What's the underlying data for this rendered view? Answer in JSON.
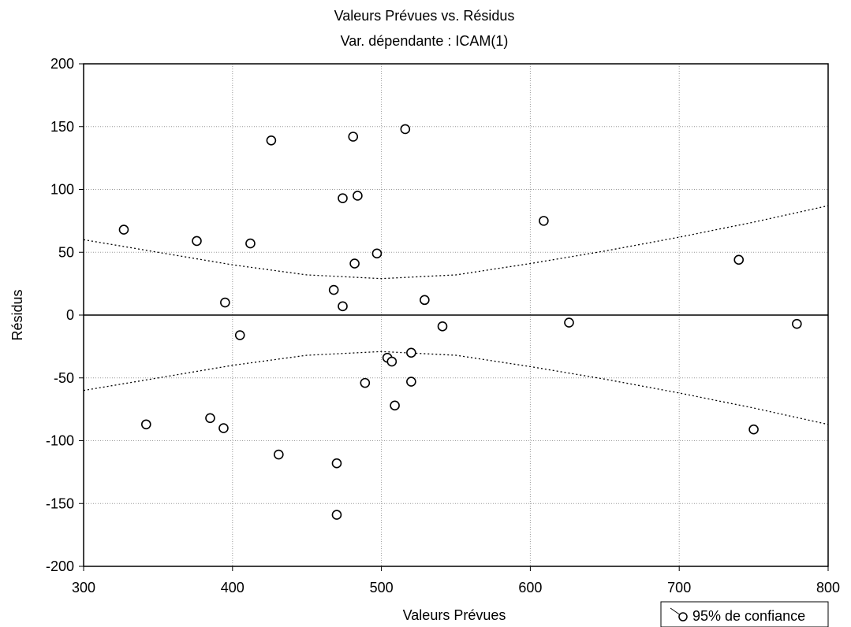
{
  "chart_data": {
    "type": "scatter",
    "title": "Valeurs Prévues vs. Résidus",
    "subtitle": "Var. dépendante : ICAM(1)",
    "xlabel": "Valeurs Prévues",
    "ylabel": "Résidus",
    "xlim": [
      300,
      800
    ],
    "ylim": [
      -200,
      200
    ],
    "xticks": [
      300,
      400,
      500,
      600,
      700,
      800
    ],
    "yticks": [
      -200,
      -150,
      -100,
      -50,
      0,
      50,
      100,
      150,
      200
    ],
    "grid": true,
    "legend": {
      "placement": "bottom-right",
      "label": "95% de confiance"
    },
    "points": [
      {
        "x": 327,
        "y": 68
      },
      {
        "x": 376,
        "y": 59
      },
      {
        "x": 412,
        "y": 57
      },
      {
        "x": 426,
        "y": 139
      },
      {
        "x": 481,
        "y": 142
      },
      {
        "x": 516,
        "y": 148
      },
      {
        "x": 474,
        "y": 93
      },
      {
        "x": 484,
        "y": 95
      },
      {
        "x": 609,
        "y": 75
      },
      {
        "x": 740,
        "y": 44
      },
      {
        "x": 497,
        "y": 49
      },
      {
        "x": 482,
        "y": 41
      },
      {
        "x": 468,
        "y": 20
      },
      {
        "x": 474,
        "y": 7
      },
      {
        "x": 395,
        "y": 10
      },
      {
        "x": 529,
        "y": 12
      },
      {
        "x": 541,
        "y": -9
      },
      {
        "x": 626,
        "y": -6
      },
      {
        "x": 779,
        "y": -7
      },
      {
        "x": 405,
        "y": -16
      },
      {
        "x": 504,
        "y": -34
      },
      {
        "x": 507,
        "y": -37
      },
      {
        "x": 520,
        "y": -30
      },
      {
        "x": 489,
        "y": -54
      },
      {
        "x": 520,
        "y": -53
      },
      {
        "x": 509,
        "y": -72
      },
      {
        "x": 342,
        "y": -87
      },
      {
        "x": 385,
        "y": -82
      },
      {
        "x": 394,
        "y": -90
      },
      {
        "x": 750,
        "y": -91
      },
      {
        "x": 431,
        "y": -111
      },
      {
        "x": 470,
        "y": -118
      },
      {
        "x": 470,
        "y": -159
      }
    ],
    "confidence_band": {
      "x": [
        300,
        350,
        400,
        450,
        500,
        550,
        600,
        650,
        700,
        750,
        800
      ],
      "upper": [
        60,
        50,
        40,
        32,
        29,
        32,
        41,
        51,
        62,
        74,
        87
      ],
      "lower": [
        -60,
        -50,
        -40,
        -32,
        -29,
        -32,
        -41,
        -51,
        -62,
        -74,
        -87
      ]
    }
  }
}
